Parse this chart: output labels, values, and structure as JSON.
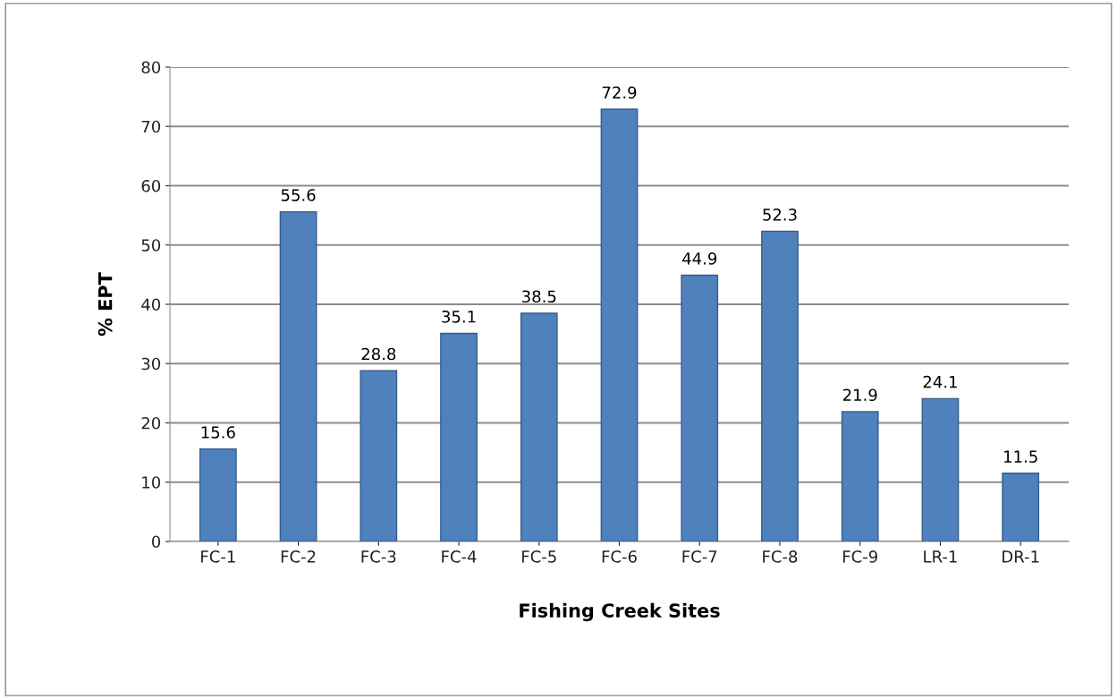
{
  "chart_data": {
    "type": "bar",
    "xlabel": "Fishing Creek Sites",
    "ylabel": "% EPT",
    "categories": [
      "FC-1",
      "FC-2",
      "FC-3",
      "FC-4",
      "FC-5",
      "FC-6",
      "FC-7",
      "FC-8",
      "FC-9",
      "LR-1",
      "DR-1"
    ],
    "values": [
      15.6,
      55.6,
      28.8,
      35.1,
      38.5,
      72.9,
      44.9,
      52.3,
      21.9,
      24.1,
      11.5
    ],
    "color": "#4f81bd",
    "ylim": [
      0,
      80
    ],
    "yticks": [
      0,
      10,
      20,
      30,
      40,
      50,
      60,
      70,
      80
    ],
    "grid": "y",
    "data_labels": true,
    "legend": false
  }
}
